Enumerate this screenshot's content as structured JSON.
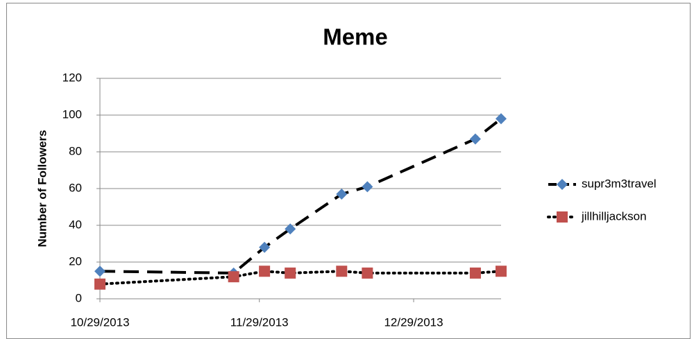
{
  "chart_data": {
    "type": "line",
    "title": "Meme",
    "y_label": "Number of Followers",
    "x": [
      "10/29/2013",
      "11/24/2013",
      "11/30/2013",
      "12/5/2013",
      "12/15/2013",
      "12/20/2013",
      "1/10/2014",
      "1/15/2014"
    ],
    "series": [
      {
        "name": "supr3m3travel",
        "color": "#4f81bd",
        "marker": "diamond",
        "dash": "dashed",
        "values": [
          15,
          14,
          28,
          38,
          57,
          61,
          87,
          98
        ]
      },
      {
        "name": "jillhilljackson",
        "color": "#c0504d",
        "marker": "square",
        "dash": "dotted",
        "values": [
          8,
          12,
          15,
          14,
          15,
          14,
          14,
          15
        ]
      }
    ],
    "xlim": [
      "10/29/2013",
      "1/15/2014"
    ],
    "xticks": [
      "10/29/2013",
      "11/29/2013",
      "12/29/2013"
    ],
    "ylim": [
      0,
      120
    ],
    "yticks": [
      0,
      20,
      40,
      60,
      80,
      100,
      120
    ],
    "grid": true,
    "legend": "right"
  }
}
